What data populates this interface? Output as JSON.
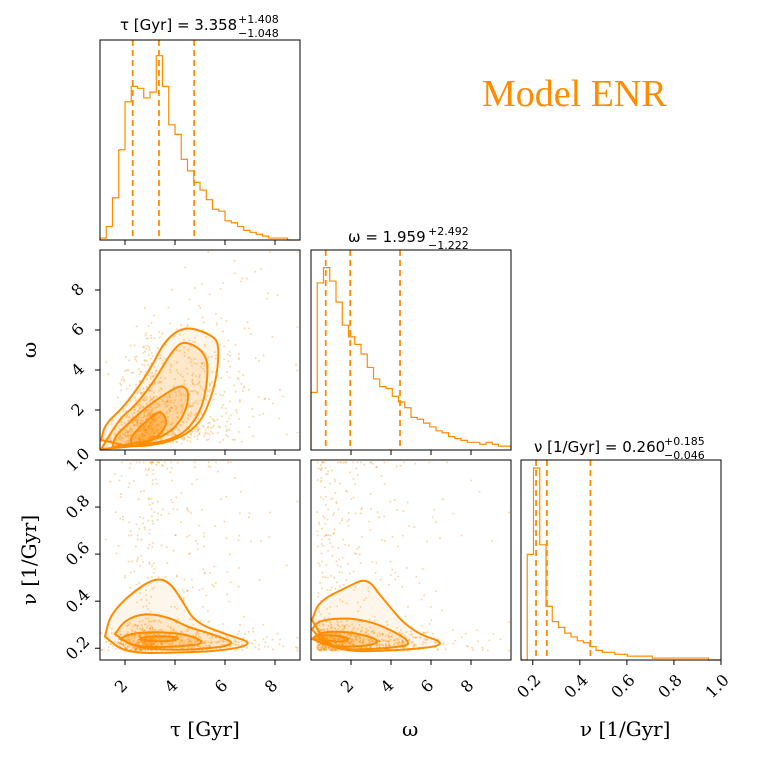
{
  "model_label": "Model ENR",
  "colors": {
    "accent": "#ff8c00",
    "axis": "#000000"
  },
  "titles": {
    "tau": {
      "prefix": "τ [Gyr] = 3.358",
      "plus": "+1.408",
      "minus": "−1.048"
    },
    "omega": {
      "prefix": "ω = 1.959",
      "plus": "+2.492",
      "minus": "−1.222"
    },
    "nu": {
      "prefix": "ν [1/Gyr] = 0.260",
      "plus": "+0.185",
      "minus": "−0.046"
    }
  },
  "axis_labels": {
    "tau": "τ [Gyr]",
    "omega": "ω",
    "nu": "ν [1/Gyr]"
  },
  "chart_data": {
    "type": "corner",
    "parameters": [
      "tau",
      "omega",
      "nu"
    ],
    "ranges": {
      "tau": [
        1.0,
        9.0
      ],
      "omega": [
        0.0,
        10.0
      ],
      "nu": [
        0.15,
        1.0
      ]
    },
    "ticks": {
      "tau": [
        "2",
        "4",
        "6",
        "8"
      ],
      "omega": [
        "2",
        "4",
        "6",
        "8"
      ],
      "nu": [
        "0.2",
        "0.4",
        "0.6",
        "0.8",
        "1.0"
      ]
    },
    "tick_values": {
      "tau": [
        2,
        4,
        6,
        8
      ],
      "omega": [
        2,
        4,
        6,
        8
      ],
      "nu": [
        0.2,
        0.4,
        0.6,
        0.8,
        1.0
      ]
    },
    "quantiles": {
      "tau": [
        2.31,
        3.358,
        4.766
      ],
      "omega": [
        0.737,
        1.959,
        4.451
      ],
      "nu": [
        0.214,
        0.26,
        0.445
      ]
    },
    "histograms": {
      "tau": [
        0.01,
        0.07,
        0.22,
        0.47,
        0.72,
        0.8,
        0.79,
        0.74,
        0.77,
        0.96,
        0.8,
        0.6,
        0.55,
        0.42,
        0.36,
        0.3,
        0.26,
        0.21,
        0.16,
        0.15,
        0.1,
        0.09,
        0.07,
        0.05,
        0.04,
        0.03,
        0.02,
        0.01,
        0.01,
        0.01,
        0.0,
        0.0
      ],
      "omega": [
        0.3,
        0.87,
        0.95,
        0.88,
        0.77,
        0.65,
        0.59,
        0.55,
        0.5,
        0.43,
        0.37,
        0.33,
        0.32,
        0.28,
        0.25,
        0.22,
        0.17,
        0.16,
        0.14,
        0.12,
        0.1,
        0.09,
        0.07,
        0.06,
        0.05,
        0.04,
        0.04,
        0.03,
        0.04,
        0.03,
        0.02,
        0.02
      ],
      "nu": [
        0.0,
        0.55,
        1.0,
        0.6,
        0.28,
        0.2,
        0.17,
        0.14,
        0.12,
        0.1,
        0.09,
        0.07,
        0.05,
        0.04,
        0.04,
        0.03,
        0.03,
        0.02,
        0.02,
        0.02,
        0.02,
        0.01,
        0.01,
        0.01,
        0.01,
        0.01,
        0.01,
        0.01,
        0.01,
        0.01,
        0.0,
        0.0
      ]
    },
    "contours_2d": {
      "omega_vs_tau": [
        [
          [
            2.3,
            0.2
          ],
          [
            2.9,
            0.35
          ],
          [
            3.5,
            0.85
          ],
          [
            3.7,
            1.5
          ],
          [
            3.4,
            2.0
          ],
          [
            2.9,
            1.5
          ],
          [
            2.4,
            0.9
          ],
          [
            2.2,
            0.5
          ]
        ],
        [
          [
            1.5,
            0.15
          ],
          [
            2.2,
            0.3
          ],
          [
            3.5,
            0.6
          ],
          [
            4.3,
            1.5
          ],
          [
            4.6,
            2.8
          ],
          [
            4.3,
            3.3
          ],
          [
            3.6,
            2.8
          ],
          [
            2.8,
            2.1
          ],
          [
            2.2,
            1.4
          ],
          [
            1.6,
            0.7
          ]
        ],
        [
          [
            1.05,
            0.05
          ],
          [
            2.5,
            0.2
          ],
          [
            4.2,
            0.6
          ],
          [
            5.0,
            1.8
          ],
          [
            5.3,
            3.3
          ],
          [
            5.3,
            4.8
          ],
          [
            4.4,
            5.5
          ],
          [
            3.9,
            5.0
          ],
          [
            3.2,
            3.5
          ],
          [
            2.4,
            2.2
          ],
          [
            1.8,
            1.6
          ]
        ],
        [
          [
            1.05,
            0.5
          ],
          [
            2.6,
            0.05
          ],
          [
            4.8,
            0.8
          ],
          [
            5.6,
            3.0
          ],
          [
            5.8,
            5.3
          ],
          [
            5.4,
            5.8
          ],
          [
            4.4,
            6.2
          ],
          [
            3.6,
            5.5
          ],
          [
            3.0,
            4.0
          ],
          [
            2.0,
            2.2
          ],
          [
            1.2,
            1.3
          ]
        ]
      ],
      "nu_vs_tau": [
        [
          [
            2.6,
            0.238
          ],
          [
            3.2,
            0.228
          ],
          [
            4.0,
            0.232
          ],
          [
            4.2,
            0.245
          ],
          [
            3.5,
            0.252
          ],
          [
            2.7,
            0.248
          ]
        ],
        [
          [
            1.8,
            0.24
          ],
          [
            2.5,
            0.205
          ],
          [
            4.0,
            0.205
          ],
          [
            5.3,
            0.22
          ],
          [
            4.5,
            0.26
          ],
          [
            3.2,
            0.27
          ],
          [
            2.2,
            0.262
          ]
        ],
        [
          [
            1.6,
            0.26
          ],
          [
            2.4,
            0.2
          ],
          [
            4.5,
            0.19
          ],
          [
            6.6,
            0.215
          ],
          [
            5.5,
            0.26
          ],
          [
            4.5,
            0.29
          ],
          [
            3.8,
            0.33
          ],
          [
            2.8,
            0.35
          ],
          [
            2.0,
            0.32
          ]
        ],
        [
          [
            1.2,
            0.25
          ],
          [
            2.0,
            0.18
          ],
          [
            4.0,
            0.18
          ],
          [
            6.0,
            0.19
          ],
          [
            7.2,
            0.22
          ],
          [
            6.0,
            0.26
          ],
          [
            4.8,
            0.31
          ],
          [
            4.3,
            0.4
          ],
          [
            3.8,
            0.48
          ],
          [
            3.2,
            0.5
          ],
          [
            2.2,
            0.43
          ],
          [
            1.4,
            0.34
          ]
        ]
      ],
      "nu_vs_omega": [
        [
          [
            0.2,
            0.24
          ],
          [
            1.5,
            0.225
          ],
          [
            2.0,
            0.24
          ],
          [
            1.3,
            0.255
          ],
          [
            0.2,
            0.255
          ]
        ],
        [
          [
            0.05,
            0.24
          ],
          [
            1.0,
            0.205
          ],
          [
            3.0,
            0.21
          ],
          [
            3.5,
            0.235
          ],
          [
            2.0,
            0.27
          ],
          [
            0.5,
            0.27
          ]
        ],
        [
          [
            0.05,
            0.28
          ],
          [
            1.0,
            0.19
          ],
          [
            4.0,
            0.2
          ],
          [
            5.2,
            0.22
          ],
          [
            3.5,
            0.3
          ],
          [
            2.0,
            0.33
          ],
          [
            0.4,
            0.32
          ]
        ],
        [
          [
            0.05,
            0.32
          ],
          [
            1.0,
            0.185
          ],
          [
            4.5,
            0.19
          ],
          [
            7.0,
            0.215
          ],
          [
            5.0,
            0.27
          ],
          [
            3.5,
            0.42
          ],
          [
            2.8,
            0.5
          ],
          [
            1.8,
            0.46
          ],
          [
            0.4,
            0.4
          ]
        ]
      ]
    },
    "samples": 1000
  }
}
